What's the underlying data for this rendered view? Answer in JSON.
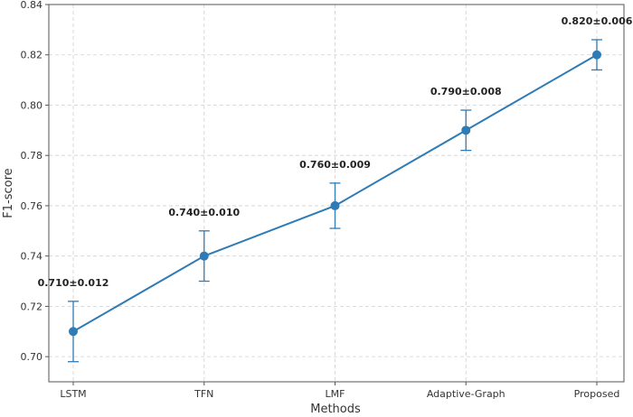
{
  "chart_data": {
    "type": "line",
    "title": "",
    "xlabel": "Methods",
    "ylabel": "F1-score",
    "categories": [
      "LSTM",
      "TFN",
      "LMF",
      "Adaptive-Graph",
      "Proposed"
    ],
    "series": [
      {
        "values": [
          0.71,
          0.74,
          0.76,
          0.79,
          0.82
        ],
        "errors": [
          0.012,
          0.01,
          0.009,
          0.008,
          0.006
        ],
        "data_labels": [
          "0.710±0.012",
          "0.740±0.010",
          "0.760±0.009",
          "0.790±0.008",
          "0.820±0.006"
        ],
        "color": "#2e7bb5"
      }
    ],
    "ylim": [
      0.69,
      0.84
    ],
    "yticks": [
      0.7,
      0.72,
      0.74,
      0.76,
      0.78,
      0.8,
      0.82,
      0.84
    ],
    "ytick_labels": [
      "0.70",
      "0.72",
      "0.74",
      "0.76",
      "0.78",
      "0.80",
      "0.82",
      "0.84"
    ],
    "grid": true,
    "legend": "none"
  }
}
